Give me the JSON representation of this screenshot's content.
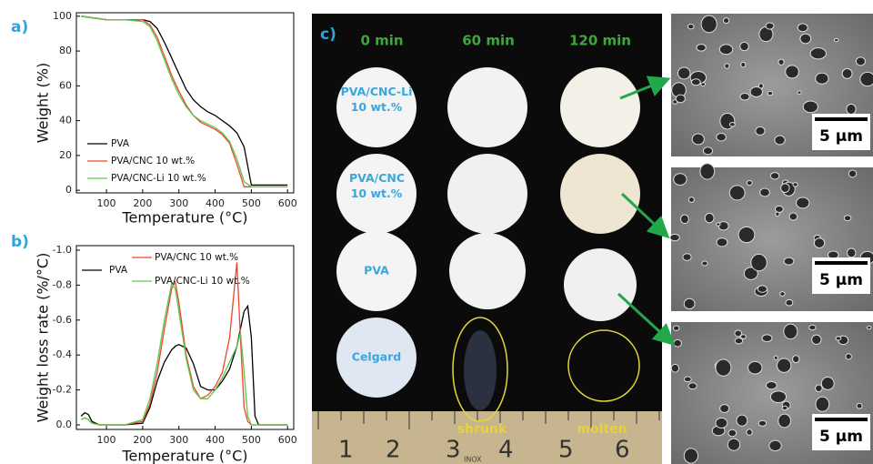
{
  "chart_data": [
    {
      "type": "line",
      "label": "a)",
      "ylabel": "Weight (%)",
      "xlabel": "Temperature (°C)",
      "x": [
        30,
        100,
        150,
        200,
        220,
        240,
        260,
        280,
        300,
        320,
        340,
        360,
        380,
        400,
        420,
        440,
        460,
        480,
        500,
        520,
        600
      ],
      "series": [
        {
          "name": "PVA",
          "color": "#000000",
          "values": [
            100,
            98,
            98,
            98,
            97,
            93,
            85,
            76,
            67,
            58,
            52,
            48,
            45,
            43,
            40,
            37,
            33,
            25,
            3,
            3,
            3
          ]
        },
        {
          "name": "PVA/CNC 10 wt.%",
          "color": "#f0442c",
          "values": [
            100,
            98,
            98,
            98,
            95,
            88,
            77,
            66,
            57,
            49,
            43,
            39,
            37,
            35,
            32,
            27,
            15,
            2,
            2,
            2,
            2
          ]
        },
        {
          "name": "PVA/CNC-Li 10 wt.%",
          "color": "#5cc84a",
          "values": [
            100,
            98,
            98,
            97,
            94,
            86,
            75,
            64,
            55,
            48,
            43,
            40,
            38,
            36,
            33,
            28,
            18,
            5,
            2,
            2,
            2
          ]
        }
      ],
      "xlim": [
        17,
        617
      ],
      "xticks": [
        100,
        200,
        300,
        400,
        500,
        600
      ],
      "ylim": [
        -1.5,
        102
      ],
      "yticks": [
        0,
        20,
        40,
        60,
        80,
        100
      ],
      "legend": "lower left"
    },
    {
      "type": "line",
      "label": "b)",
      "ylabel": "Weight loss rate (%/°C)",
      "xlabel": "Temperature (°C)",
      "x": [
        30,
        40,
        50,
        60,
        80,
        150,
        200,
        220,
        240,
        260,
        280,
        290,
        300,
        320,
        340,
        360,
        380,
        400,
        420,
        440,
        460,
        470,
        480,
        490,
        500,
        510,
        520,
        600
      ],
      "series": [
        {
          "name": "PVA",
          "color": "#000000",
          "values": [
            -0.05,
            -0.07,
            -0.06,
            -0.02,
            0,
            0,
            -0.01,
            -0.1,
            -0.25,
            -0.36,
            -0.43,
            -0.45,
            -0.46,
            -0.44,
            -0.35,
            -0.22,
            -0.2,
            -0.2,
            -0.25,
            -0.32,
            -0.45,
            -0.55,
            -0.65,
            -0.68,
            -0.5,
            -0.05,
            0,
            0
          ]
        },
        {
          "name": "PVA/CNC 10 wt.%",
          "color": "#f0442c",
          "values": [
            -0.03,
            -0.04,
            -0.03,
            -0.01,
            0,
            0,
            -0.02,
            -0.12,
            -0.3,
            -0.55,
            -0.78,
            -0.82,
            -0.7,
            -0.4,
            -0.22,
            -0.15,
            -0.17,
            -0.22,
            -0.3,
            -0.5,
            -0.93,
            -0.5,
            -0.1,
            -0.02,
            0,
            0,
            0,
            0
          ]
        },
        {
          "name": "PVA/CNC-Li 10 wt.%",
          "color": "#5cc84a",
          "values": [
            -0.03,
            -0.04,
            -0.03,
            -0.01,
            0,
            0,
            -0.03,
            -0.15,
            -0.35,
            -0.6,
            -0.81,
            -0.78,
            -0.65,
            -0.38,
            -0.2,
            -0.15,
            -0.15,
            -0.2,
            -0.27,
            -0.36,
            -0.45,
            -0.53,
            -0.3,
            -0.05,
            0,
            0,
            0,
            0
          ]
        }
      ],
      "xlim": [
        17,
        617
      ],
      "xticks": [
        100,
        200,
        300,
        400,
        500,
        600
      ],
      "ylim": [
        0.026,
        -1.026
      ],
      "yticks": [
        {
          "value": -1,
          "label": "-1.0"
        },
        -0.8,
        -0.6,
        -0.4,
        -0.2,
        {
          "value": 0,
          "label": "0.0"
        }
      ],
      "legend": "upper center"
    }
  ],
  "photo": {
    "label": "c)",
    "times": [
      "0 min",
      "60 min",
      "120 min"
    ],
    "samples": [
      "PVA/CNC-Li 10 wt.%",
      "PVA/CNC 10 wt.%",
      "PVA",
      "Celgard"
    ],
    "notes": [
      "shrunk",
      "molten"
    ],
    "ruler": [
      "1",
      "2",
      "3",
      "4",
      "5",
      "6"
    ],
    "ruler_brand": "INOX"
  },
  "sem": {
    "scale_bars": [
      "5 µm",
      "5 µm",
      "5 µm"
    ]
  }
}
